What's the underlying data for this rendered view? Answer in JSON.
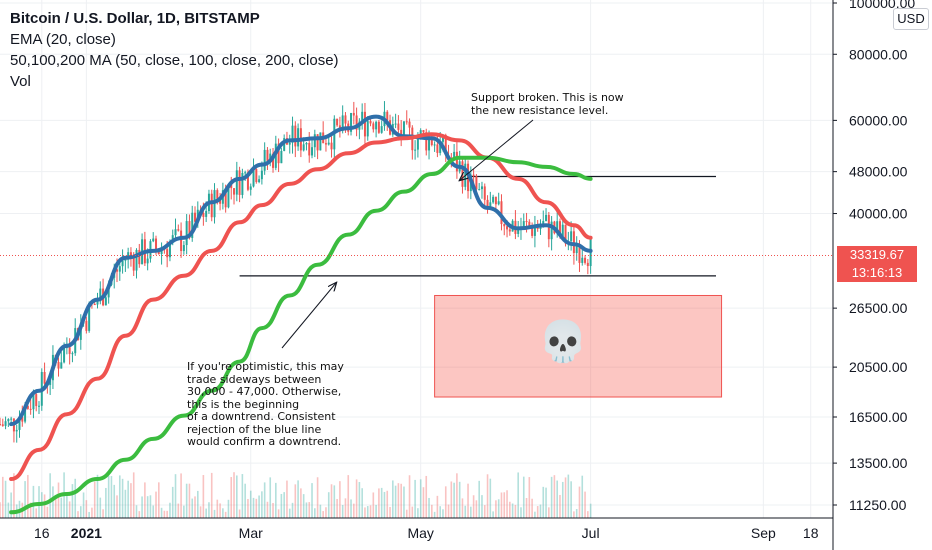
{
  "chart_data": {
    "type": "line",
    "title": "Bitcoin / U.S. Dollar, 1D, BITSTAMP",
    "indicators": [
      "EMA (20, close)",
      "50,100,200 MA (50, close, 100, close, 200, close)",
      "Vol"
    ],
    "currency": "USD",
    "y_scale": "log",
    "ylim": [
      10500,
      100000
    ],
    "y_ticks": [
      "100000.00",
      "80000.00",
      "60000.00",
      "48000.00",
      "40000.00",
      "26500.00",
      "20500.00",
      "16500.00",
      "13500.00",
      "11250.00"
    ],
    "x_ticks": [
      "16",
      "2021",
      "Mar",
      "May",
      "Jul",
      "Sep",
      "18"
    ],
    "current_price": "33319.67",
    "countdown": "13:16:13",
    "grid": true,
    "series": [
      {
        "name": "EMA (20, close)",
        "color": "#2f6faa",
        "x": [
          "2020-12-05",
          "2020-12-15",
          "2020-12-25",
          "2021-01-05",
          "2021-01-15",
          "2021-01-25",
          "2021-02-05",
          "2021-02-15",
          "2021-02-25",
          "2021-03-05",
          "2021-03-15",
          "2021-03-25",
          "2021-04-05",
          "2021-04-15",
          "2021-04-25",
          "2021-05-05",
          "2021-05-15",
          "2021-05-25",
          "2021-06-05",
          "2021-06-15",
          "2021-06-25",
          "2021-07-01"
        ],
        "values": [
          16000,
          18500,
          22500,
          27500,
          33000,
          34000,
          36000,
          42000,
          46500,
          49500,
          55000,
          55500,
          58000,
          61000,
          56000,
          55500,
          49000,
          41000,
          37500,
          38000,
          35000,
          34000
        ]
      },
      {
        "name": "MA 50",
        "color": "#ef5350",
        "x": [
          "2020-12-05",
          "2020-12-15",
          "2020-12-25",
          "2021-01-05",
          "2021-01-15",
          "2021-01-25",
          "2021-02-05",
          "2021-02-15",
          "2021-02-25",
          "2021-03-05",
          "2021-03-15",
          "2021-03-25",
          "2021-04-05",
          "2021-04-15",
          "2021-04-25",
          "2021-05-05",
          "2021-05-15",
          "2021-05-25",
          "2021-06-05",
          "2021-06-15",
          "2021-06-25",
          "2021-07-01"
        ],
        "values": [
          12600,
          14300,
          16700,
          19500,
          23500,
          27500,
          30500,
          34000,
          38500,
          41500,
          45500,
          48500,
          52000,
          54500,
          55500,
          56500,
          55000,
          51000,
          46500,
          42000,
          38000,
          36000
        ]
      },
      {
        "name": "MA 200",
        "color": "#3bbc3f",
        "x": [
          "2020-12-05",
          "2020-12-15",
          "2020-12-25",
          "2021-01-05",
          "2021-01-15",
          "2021-01-25",
          "2021-02-05",
          "2021-02-15",
          "2021-02-25",
          "2021-03-05",
          "2021-03-15",
          "2021-03-25",
          "2021-04-05",
          "2021-04-15",
          "2021-04-25",
          "2021-05-05",
          "2021-05-15",
          "2021-05-25",
          "2021-06-05",
          "2021-06-15",
          "2021-06-25",
          "2021-07-01"
        ],
        "values": [
          10900,
          11300,
          11800,
          12600,
          13700,
          15000,
          16600,
          18500,
          21000,
          24300,
          28000,
          32000,
          36500,
          40500,
          44000,
          47500,
          51000,
          51000,
          50000,
          49000,
          47500,
          46500
        ]
      }
    ],
    "annotations": {
      "resistance_note": [
        "Support broken. This is now",
        "the new resistance level."
      ],
      "sideways_note": [
        "If you're optimistic, this may",
        "trade sideways between",
        "30,000 - 47,000. Otherwise,",
        "this is the beginning",
        "of a downtrend. Consistent",
        "rejection of the blue line",
        "would confirm a downtrend."
      ],
      "skull": "💀",
      "resistance_level": 47000,
      "support_level": 30500,
      "danger_zone": [
        18000,
        28000
      ]
    }
  }
}
